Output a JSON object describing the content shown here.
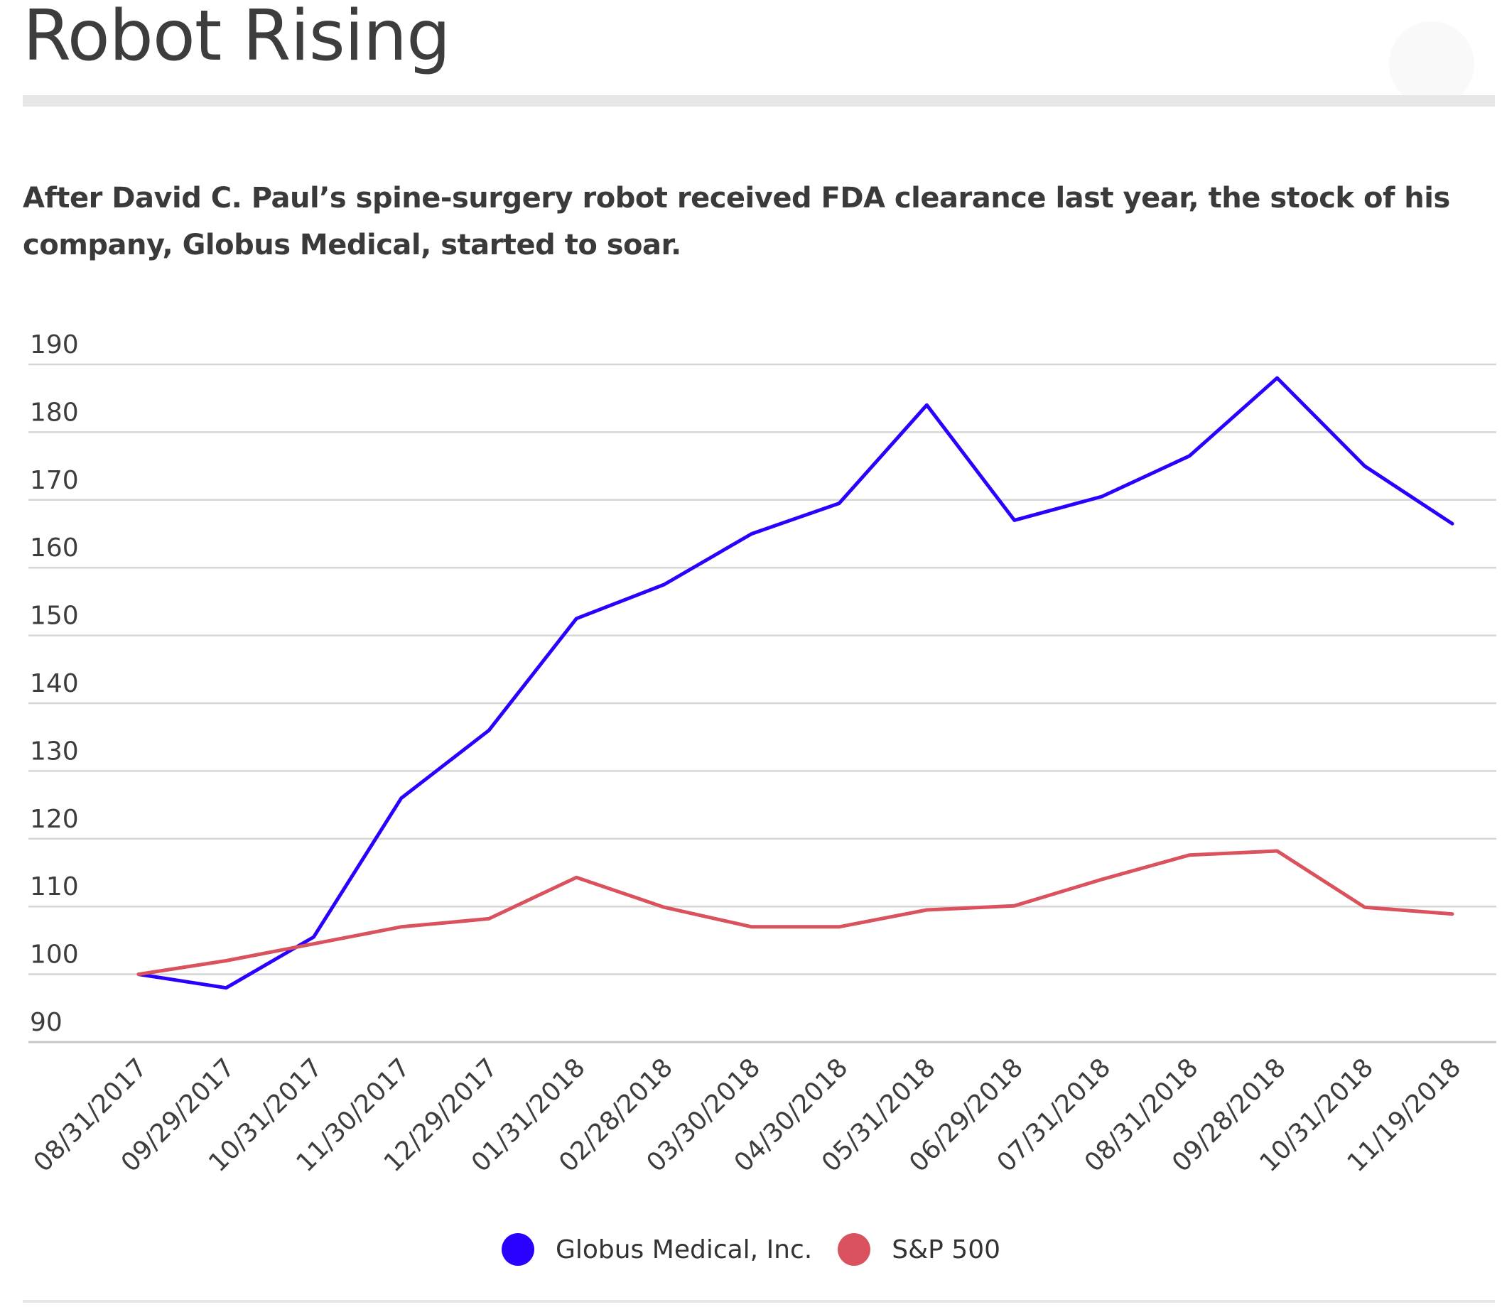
{
  "header": {
    "title": "Robot Rising",
    "subtitle": "After David C. Paul’s spine-surgery robot received FDA clearance last year, the stock of his company, Globus Medical, started to soar."
  },
  "chart_data": {
    "type": "line",
    "title": "Robot Rising",
    "subtitle": "After David C. Paul’s spine-surgery robot received FDA clearance last year, the stock of his company, Globus Medical, started to soar.",
    "xlabel": "",
    "ylabel": "",
    "categories": [
      "08/31/2017",
      "09/29/2017",
      "10/31/2017",
      "11/30/2017",
      "12/29/2017",
      "01/31/2018",
      "02/28/2018",
      "03/30/2018",
      "04/30/2018",
      "05/31/2018",
      "06/29/2018",
      "07/31/2018",
      "08/31/2018",
      "09/28/2018",
      "10/31/2018",
      "11/19/2018"
    ],
    "ylim": [
      90,
      190
    ],
    "yticks": [
      90,
      100,
      110,
      120,
      130,
      140,
      150,
      160,
      170,
      180,
      190
    ],
    "grid": true,
    "legend_position": "bottom-center",
    "series": [
      {
        "name": "Globus Medical, Inc.",
        "color": "#2a00ff",
        "values": [
          100,
          98,
          105.5,
          126,
          136,
          152.5,
          157.5,
          165,
          169.5,
          184,
          167,
          170.5,
          176.5,
          188,
          175,
          166.5
        ]
      },
      {
        "name": "S&P 500",
        "color": "#d9525e",
        "values": [
          100,
          102,
          104.5,
          107,
          108.2,
          114.3,
          109.9,
          107,
          107,
          109.5,
          110.1,
          114,
          117.6,
          118.2,
          109.9,
          108.9
        ]
      }
    ]
  }
}
